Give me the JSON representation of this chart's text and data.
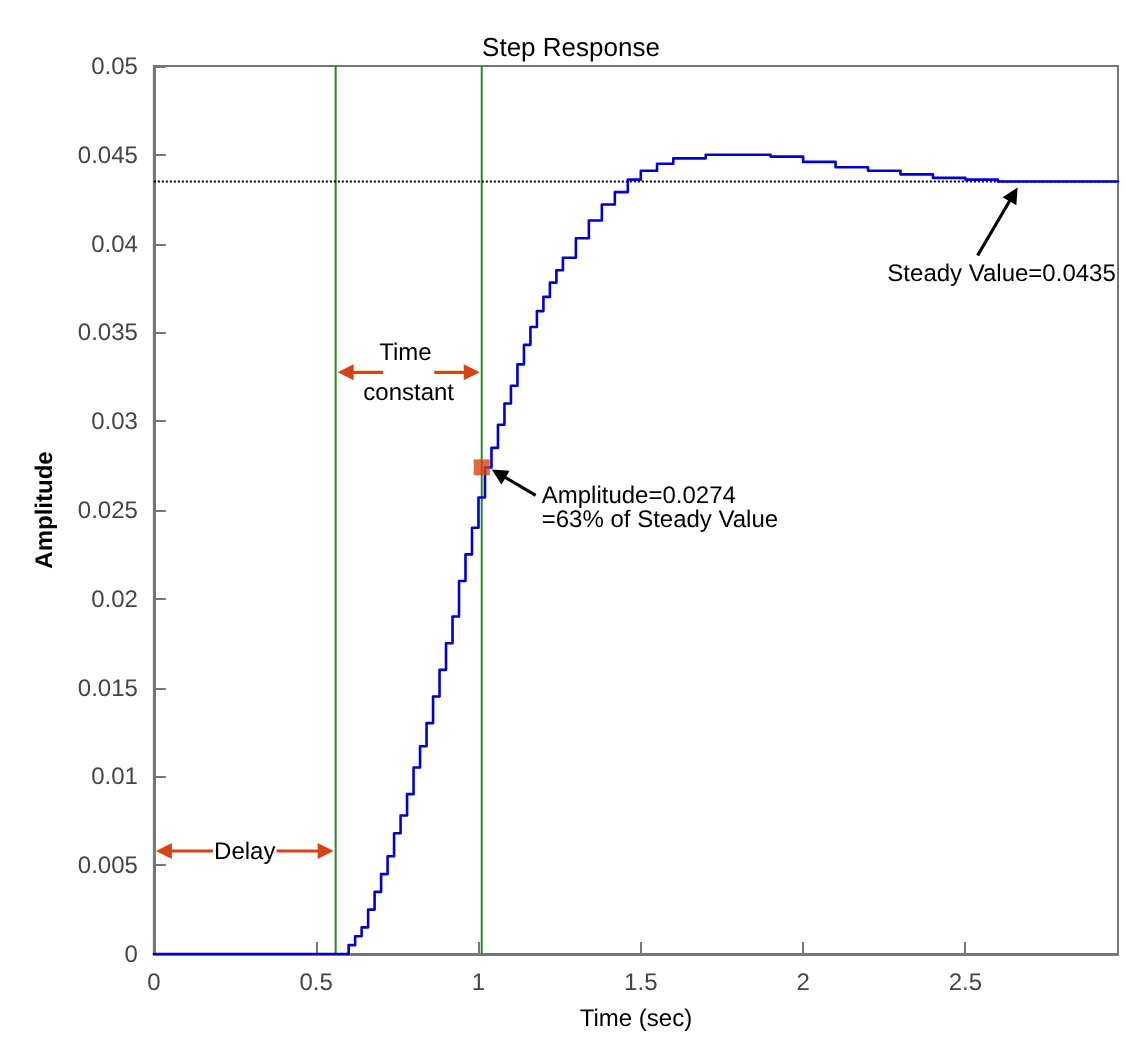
{
  "chart_data": {
    "type": "step",
    "title": "Step Response",
    "xlabel": "Time (sec)",
    "ylabel": "Amplitude",
    "xlim": [
      0,
      2.97
    ],
    "xticks": [
      0,
      0.5,
      1,
      1.5,
      2,
      2.5
    ],
    "ylim": [
      0,
      0.05
    ],
    "yticks": [
      0,
      0.005,
      0.01,
      0.015,
      0.02,
      0.025,
      0.03,
      0.035,
      0.04,
      0.045,
      0.05
    ],
    "grid": false,
    "marker": "none",
    "series": [
      {
        "color": "#0000cc",
        "x": [
          0,
          0.57,
          0.6,
          0.62,
          0.64,
          0.66,
          0.68,
          0.7,
          0.72,
          0.74,
          0.76,
          0.78,
          0.8,
          0.82,
          0.84,
          0.86,
          0.88,
          0.9,
          0.92,
          0.94,
          0.96,
          0.98,
          1.0,
          1.02,
          1.04,
          1.06,
          1.08,
          1.1,
          1.12,
          1.14,
          1.16,
          1.18,
          1.2,
          1.22,
          1.24,
          1.26,
          1.3,
          1.34,
          1.38,
          1.42,
          1.46,
          1.5,
          1.55,
          1.6,
          1.7,
          1.8,
          1.9,
          2.0,
          2.1,
          2.2,
          2.3,
          2.4,
          2.5,
          2.6,
          2.7,
          2.97
        ],
        "values": [
          0,
          0,
          0.0005,
          0.001,
          0.0015,
          0.0025,
          0.0035,
          0.0045,
          0.0055,
          0.0068,
          0.0078,
          0.009,
          0.0105,
          0.0117,
          0.013,
          0.0145,
          0.016,
          0.0175,
          0.019,
          0.021,
          0.0225,
          0.024,
          0.0257,
          0.0274,
          0.0285,
          0.0298,
          0.031,
          0.032,
          0.0332,
          0.0343,
          0.0353,
          0.0362,
          0.037,
          0.0378,
          0.0385,
          0.0392,
          0.0403,
          0.0413,
          0.0422,
          0.0429,
          0.0436,
          0.0441,
          0.0445,
          0.0448,
          0.045,
          0.045,
          0.0449,
          0.0446,
          0.0443,
          0.0441,
          0.0439,
          0.0437,
          0.0436,
          0.0435,
          0.0435,
          0.0435
        ]
      },
      {
        "type": "scatter",
        "marker": "square",
        "color": "#d84315",
        "x": [
          1.01
        ],
        "values": [
          0.0274
        ]
      }
    ],
    "ref_lines": [
      {
        "axis": "x",
        "value": 0.56,
        "color": "#228b22",
        "line_style": "solid"
      },
      {
        "axis": "x",
        "value": 1.01,
        "color": "#228b22",
        "line_style": "solid"
      },
      {
        "axis": "y",
        "value": 0.0435,
        "color": "#000000",
        "line_style": "dotted"
      }
    ],
    "annotations": [
      "Delay",
      "Time constant",
      {
        "text": "Amplitude=0.0274 =63% of Steady Value",
        "x": 1.01,
        "y": 0.0274
      },
      "Steady Value=0.0435"
    ]
  }
}
